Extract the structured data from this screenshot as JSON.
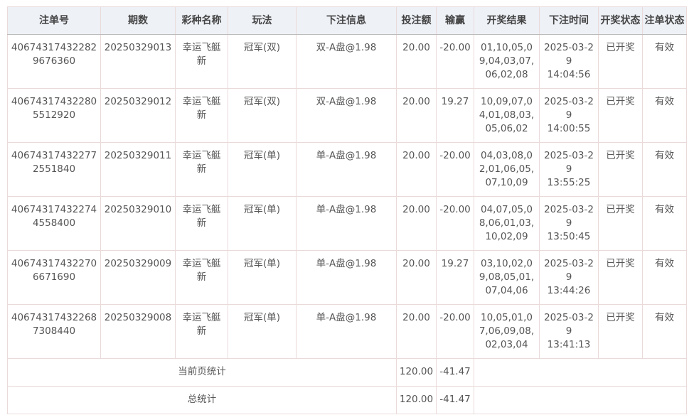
{
  "headers": [
    "注单号",
    "期数",
    "彩种名称",
    "玩法",
    "下注信息",
    "投注额",
    "输赢",
    "开奖结果",
    "下注时间",
    "开奖状态",
    "注单状态"
  ],
  "rows": [
    {
      "id": "406743174322829676360",
      "issue": "20250329013",
      "lottery": "幸运飞艇新",
      "play": "冠军(双)",
      "info": "双-A盘@1.98",
      "amount": "20.00",
      "win": "-20.00",
      "result": "01,10,05,09,04,03,07,06,02,08",
      "date": "2025-03-29",
      "time": "14:04:56",
      "draw": "已开奖",
      "status": "有效"
    },
    {
      "id": "406743174322805512920",
      "issue": "20250329012",
      "lottery": "幸运飞艇新",
      "play": "冠军(双)",
      "info": "双-A盘@1.98",
      "amount": "20.00",
      "win": "19.27",
      "result": "10,09,07,04,01,08,03,05,06,02",
      "date": "2025-03-29",
      "time": "14:00:55",
      "draw": "已开奖",
      "status": "有效"
    },
    {
      "id": "406743174322772551840",
      "issue": "20250329011",
      "lottery": "幸运飞艇新",
      "play": "冠军(单)",
      "info": "单-A盘@1.98",
      "amount": "20.00",
      "win": "-20.00",
      "result": "04,03,08,02,01,06,05,07,10,09",
      "date": "2025-03-29",
      "time": "13:55:25",
      "draw": "已开奖",
      "status": "有效"
    },
    {
      "id": "406743174322744558400",
      "issue": "20250329010",
      "lottery": "幸运飞艇新",
      "play": "冠军(单)",
      "info": "单-A盘@1.98",
      "amount": "20.00",
      "win": "-20.00",
      "result": "04,07,05,08,06,01,03,10,02,09",
      "date": "2025-03-29",
      "time": "13:50:45",
      "draw": "已开奖",
      "status": "有效"
    },
    {
      "id": "406743174322706671690",
      "issue": "20250329009",
      "lottery": "幸运飞艇新",
      "play": "冠军(单)",
      "info": "单-A盘@1.98",
      "amount": "20.00",
      "win": "19.27",
      "result": "03,10,02,09,08,05,01,07,04,06",
      "date": "2025-03-29",
      "time": "13:44:26",
      "draw": "已开奖",
      "status": "有效"
    },
    {
      "id": "406743174322687308440",
      "issue": "20250329008",
      "lottery": "幸运飞艇新",
      "play": "冠军(单)",
      "info": "单-A盘@1.98",
      "amount": "20.00",
      "win": "-20.00",
      "result": "10,05,01,07,06,09,08,02,03,04",
      "date": "2025-03-29",
      "time": "13:41:13",
      "draw": "已开奖",
      "status": "有效"
    }
  ],
  "summary": [
    {
      "label": "当前页统计",
      "amount": "120.00",
      "win": "-41.47"
    },
    {
      "label": "总统计",
      "amount": "120.00",
      "win": "-41.47"
    }
  ]
}
